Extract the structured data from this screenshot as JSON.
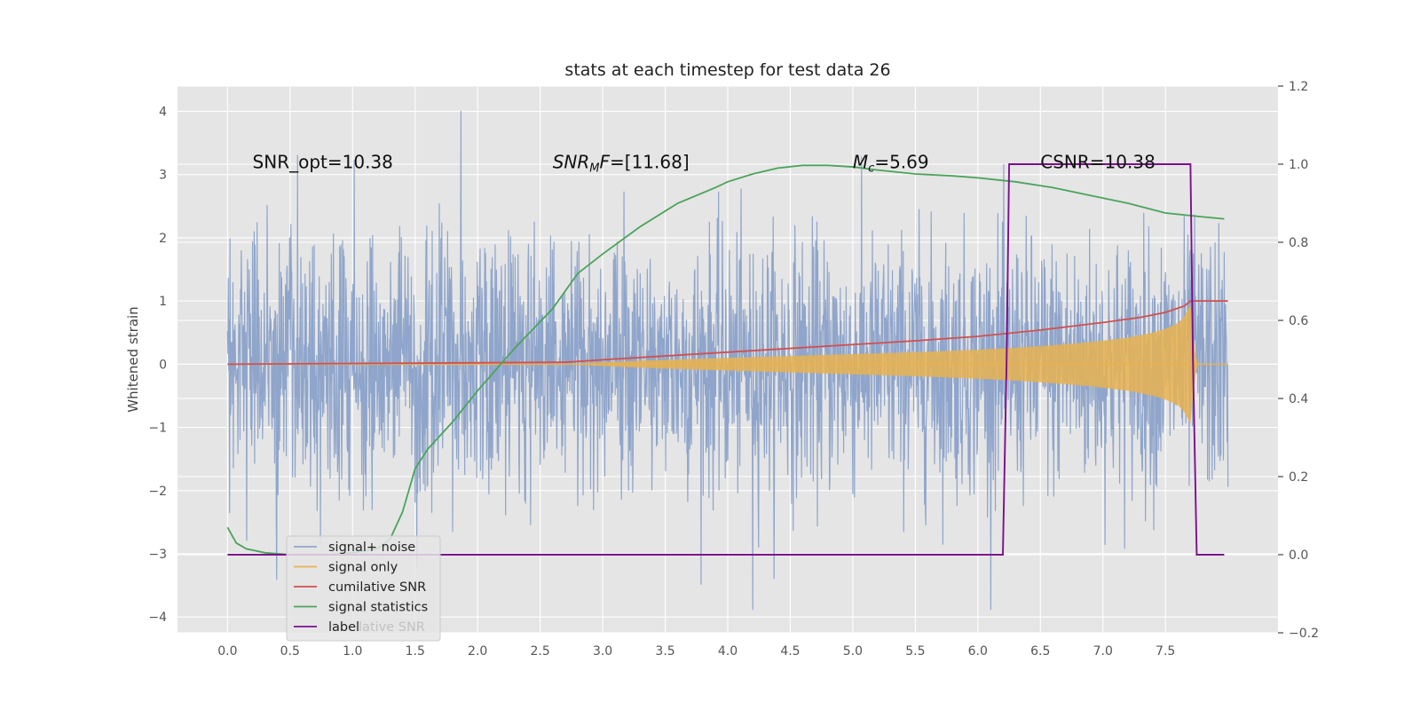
{
  "chart_data": {
    "type": "line",
    "title": "stats at each timestep for test data 26",
    "ylabel": "Whitened strain",
    "xlabel": "",
    "grid": true,
    "xlim": [
      -0.4,
      8.4
    ],
    "ylim_left": [
      -4.25,
      4.4
    ],
    "ylim_right": [
      -0.2,
      1.2
    ],
    "x_ticks": [
      "0.0",
      "0.5",
      "1.0",
      "1.5",
      "2.0",
      "2.5",
      "3.0",
      "3.5",
      "4.0",
      "4.5",
      "5.0",
      "5.5",
      "6.0",
      "6.5",
      "7.0",
      "7.5"
    ],
    "y_ticks_left": [
      "4",
      "3",
      "2",
      "1",
      "0",
      "−1",
      "−2",
      "−3",
      "−4"
    ],
    "y_ticks_right": [
      "1.2",
      "1.0",
      "0.8",
      "0.6",
      "0.4",
      "0.2",
      "0.0",
      "−0.2"
    ],
    "annotations": {
      "snr_opt": "SNR_opt=10.38",
      "snr_mf_base": "SNR",
      "snr_mf_sub": "M",
      "snr_mf_rest": "F=[11.68]",
      "mc_base": "M",
      "mc_sub": "c",
      "mc_rest": "=5.69",
      "csnr": "CSNR=10.38"
    },
    "legend": {
      "placement": "lower-left",
      "entries": [
        "signal+ noise",
        "signal only",
        "cumilative SNR",
        "signal statistics",
        "label"
      ],
      "ghost_text": "lative SNR"
    },
    "colors": {
      "noise": "#8FA5CB",
      "signal": "#E8B150",
      "cumulative_snr": "#D0504F",
      "statistics": "#4AA35B",
      "label": "#7B0F8C",
      "background": "#E5E5E5",
      "grid": "#FFFFFF"
    },
    "series": [
      {
        "name": "signal+ noise",
        "axis": "left",
        "x_range": [
          0.0,
          8.0
        ],
        "amplitude_std": 1.0,
        "y_extremes": [
          -3.88,
          4.0
        ]
      },
      {
        "name": "signal only",
        "axis": "left",
        "x": [
          0.0,
          2.7,
          3.0,
          3.5,
          4.0,
          4.5,
          5.0,
          5.5,
          6.0,
          6.3,
          6.6,
          6.9,
          7.2,
          7.4,
          7.5,
          7.6,
          7.65,
          7.7,
          7.72,
          7.75,
          8.0
        ],
        "envelope": [
          0.0,
          0.0,
          0.03,
          0.07,
          0.1,
          0.13,
          0.16,
          0.19,
          0.23,
          0.26,
          0.3,
          0.35,
          0.42,
          0.5,
          0.56,
          0.65,
          0.75,
          0.95,
          0.5,
          0.0,
          0.0
        ]
      },
      {
        "name": "cumilative SNR",
        "axis": "left",
        "x": [
          0.0,
          2.7,
          3.0,
          3.5,
          4.0,
          4.5,
          5.0,
          5.5,
          6.0,
          6.5,
          7.0,
          7.3,
          7.5,
          7.65,
          7.7,
          7.75,
          8.0
        ],
        "y": [
          0.0,
          0.03,
          0.07,
          0.13,
          0.19,
          0.25,
          0.31,
          0.37,
          0.44,
          0.54,
          0.66,
          0.74,
          0.82,
          0.92,
          1.0,
          1.0,
          1.0
        ]
      },
      {
        "name": "signal statistics",
        "axis": "right",
        "x": [
          0.0,
          0.07,
          0.15,
          0.3,
          0.5,
          0.8,
          1.0,
          1.2,
          1.3,
          1.4,
          1.5,
          1.6,
          1.8,
          2.0,
          2.3,
          2.6,
          2.8,
          3.0,
          3.3,
          3.6,
          3.9,
          4.0,
          4.2,
          4.4,
          4.6,
          4.8,
          5.0,
          5.2,
          5.5,
          5.8,
          6.0,
          6.3,
          6.6,
          6.9,
          7.2,
          7.5,
          7.8,
          7.97
        ],
        "y": [
          0.07,
          0.03,
          0.015,
          0.005,
          0.0,
          0.0,
          0.005,
          0.015,
          0.04,
          0.11,
          0.22,
          0.27,
          0.34,
          0.42,
          0.53,
          0.63,
          0.72,
          0.77,
          0.84,
          0.9,
          0.94,
          0.955,
          0.975,
          0.99,
          0.997,
          0.997,
          0.993,
          0.985,
          0.975,
          0.97,
          0.965,
          0.955,
          0.94,
          0.92,
          0.9,
          0.875,
          0.865,
          0.86
        ]
      },
      {
        "name": "label",
        "axis": "right",
        "x": [
          0.0,
          6.2,
          6.23,
          6.25,
          7.7,
          7.72,
          7.75,
          7.97
        ],
        "y": [
          0.0,
          0.0,
          0.5,
          1.0,
          1.0,
          0.5,
          0.0,
          0.0
        ]
      }
    ]
  }
}
